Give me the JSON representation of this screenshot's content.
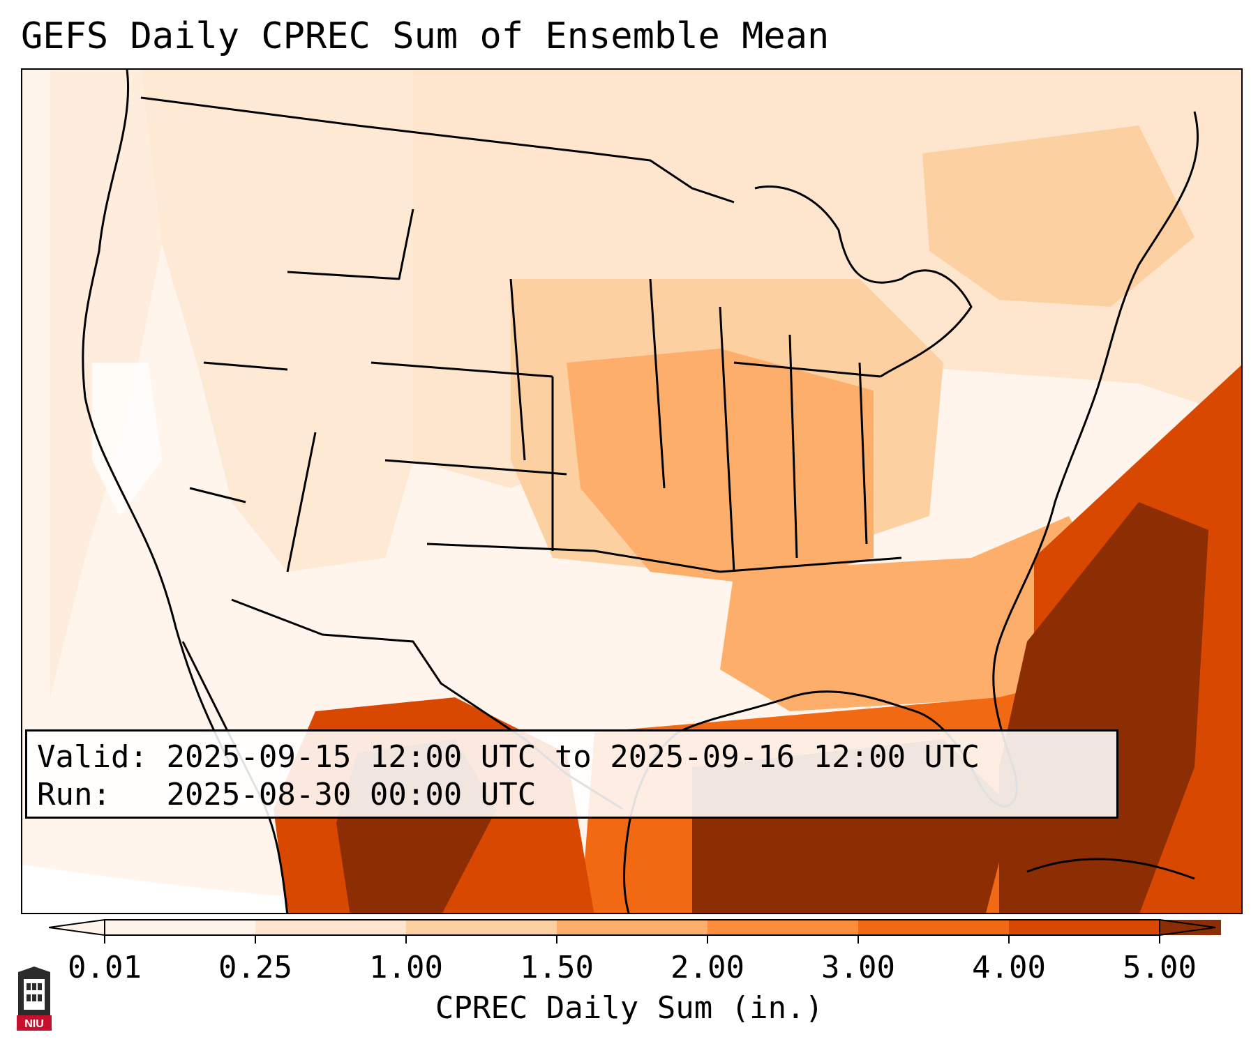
{
  "title": "GEFS Daily CPREC Sum of Ensemble Mean",
  "info": {
    "valid_label": "Valid:",
    "valid_value": "2025-09-15 12:00 UTC to 2025-09-16 12:00 UTC",
    "run_label": "Run:",
    "run_value": "2025-08-30 00:00 UTC"
  },
  "colorbar": {
    "label": "CPREC Daily Sum (in.)",
    "ticks": [
      "0.01",
      "0.25",
      "1.00",
      "1.50",
      "2.00",
      "3.00",
      "4.00",
      "5.00"
    ],
    "colors": [
      "#fff5eb",
      "#fee6ce",
      "#fdd0a2",
      "#fdae6b",
      "#fd8d3c",
      "#f16913",
      "#d94801",
      "#8c2d04"
    ]
  },
  "logo": {
    "text": "NIU",
    "color": "#c8102e"
  },
  "map": {
    "background": "#fff5ec",
    "precip_regions": [
      {
        "name": "northern plains / upper midwest band",
        "level": "1.00"
      },
      {
        "name": "central plains / mississippi valley",
        "level": "1.50"
      },
      {
        "name": "gulf coast and gulf of mexico",
        "level": "3.00"
      },
      {
        "name": "southeast atlantic coast offshore",
        "level": "5.00"
      },
      {
        "name": "northwest mexico / sierra madre",
        "level": "4.00"
      },
      {
        "name": "west coast",
        "level": "0.01"
      }
    ]
  }
}
